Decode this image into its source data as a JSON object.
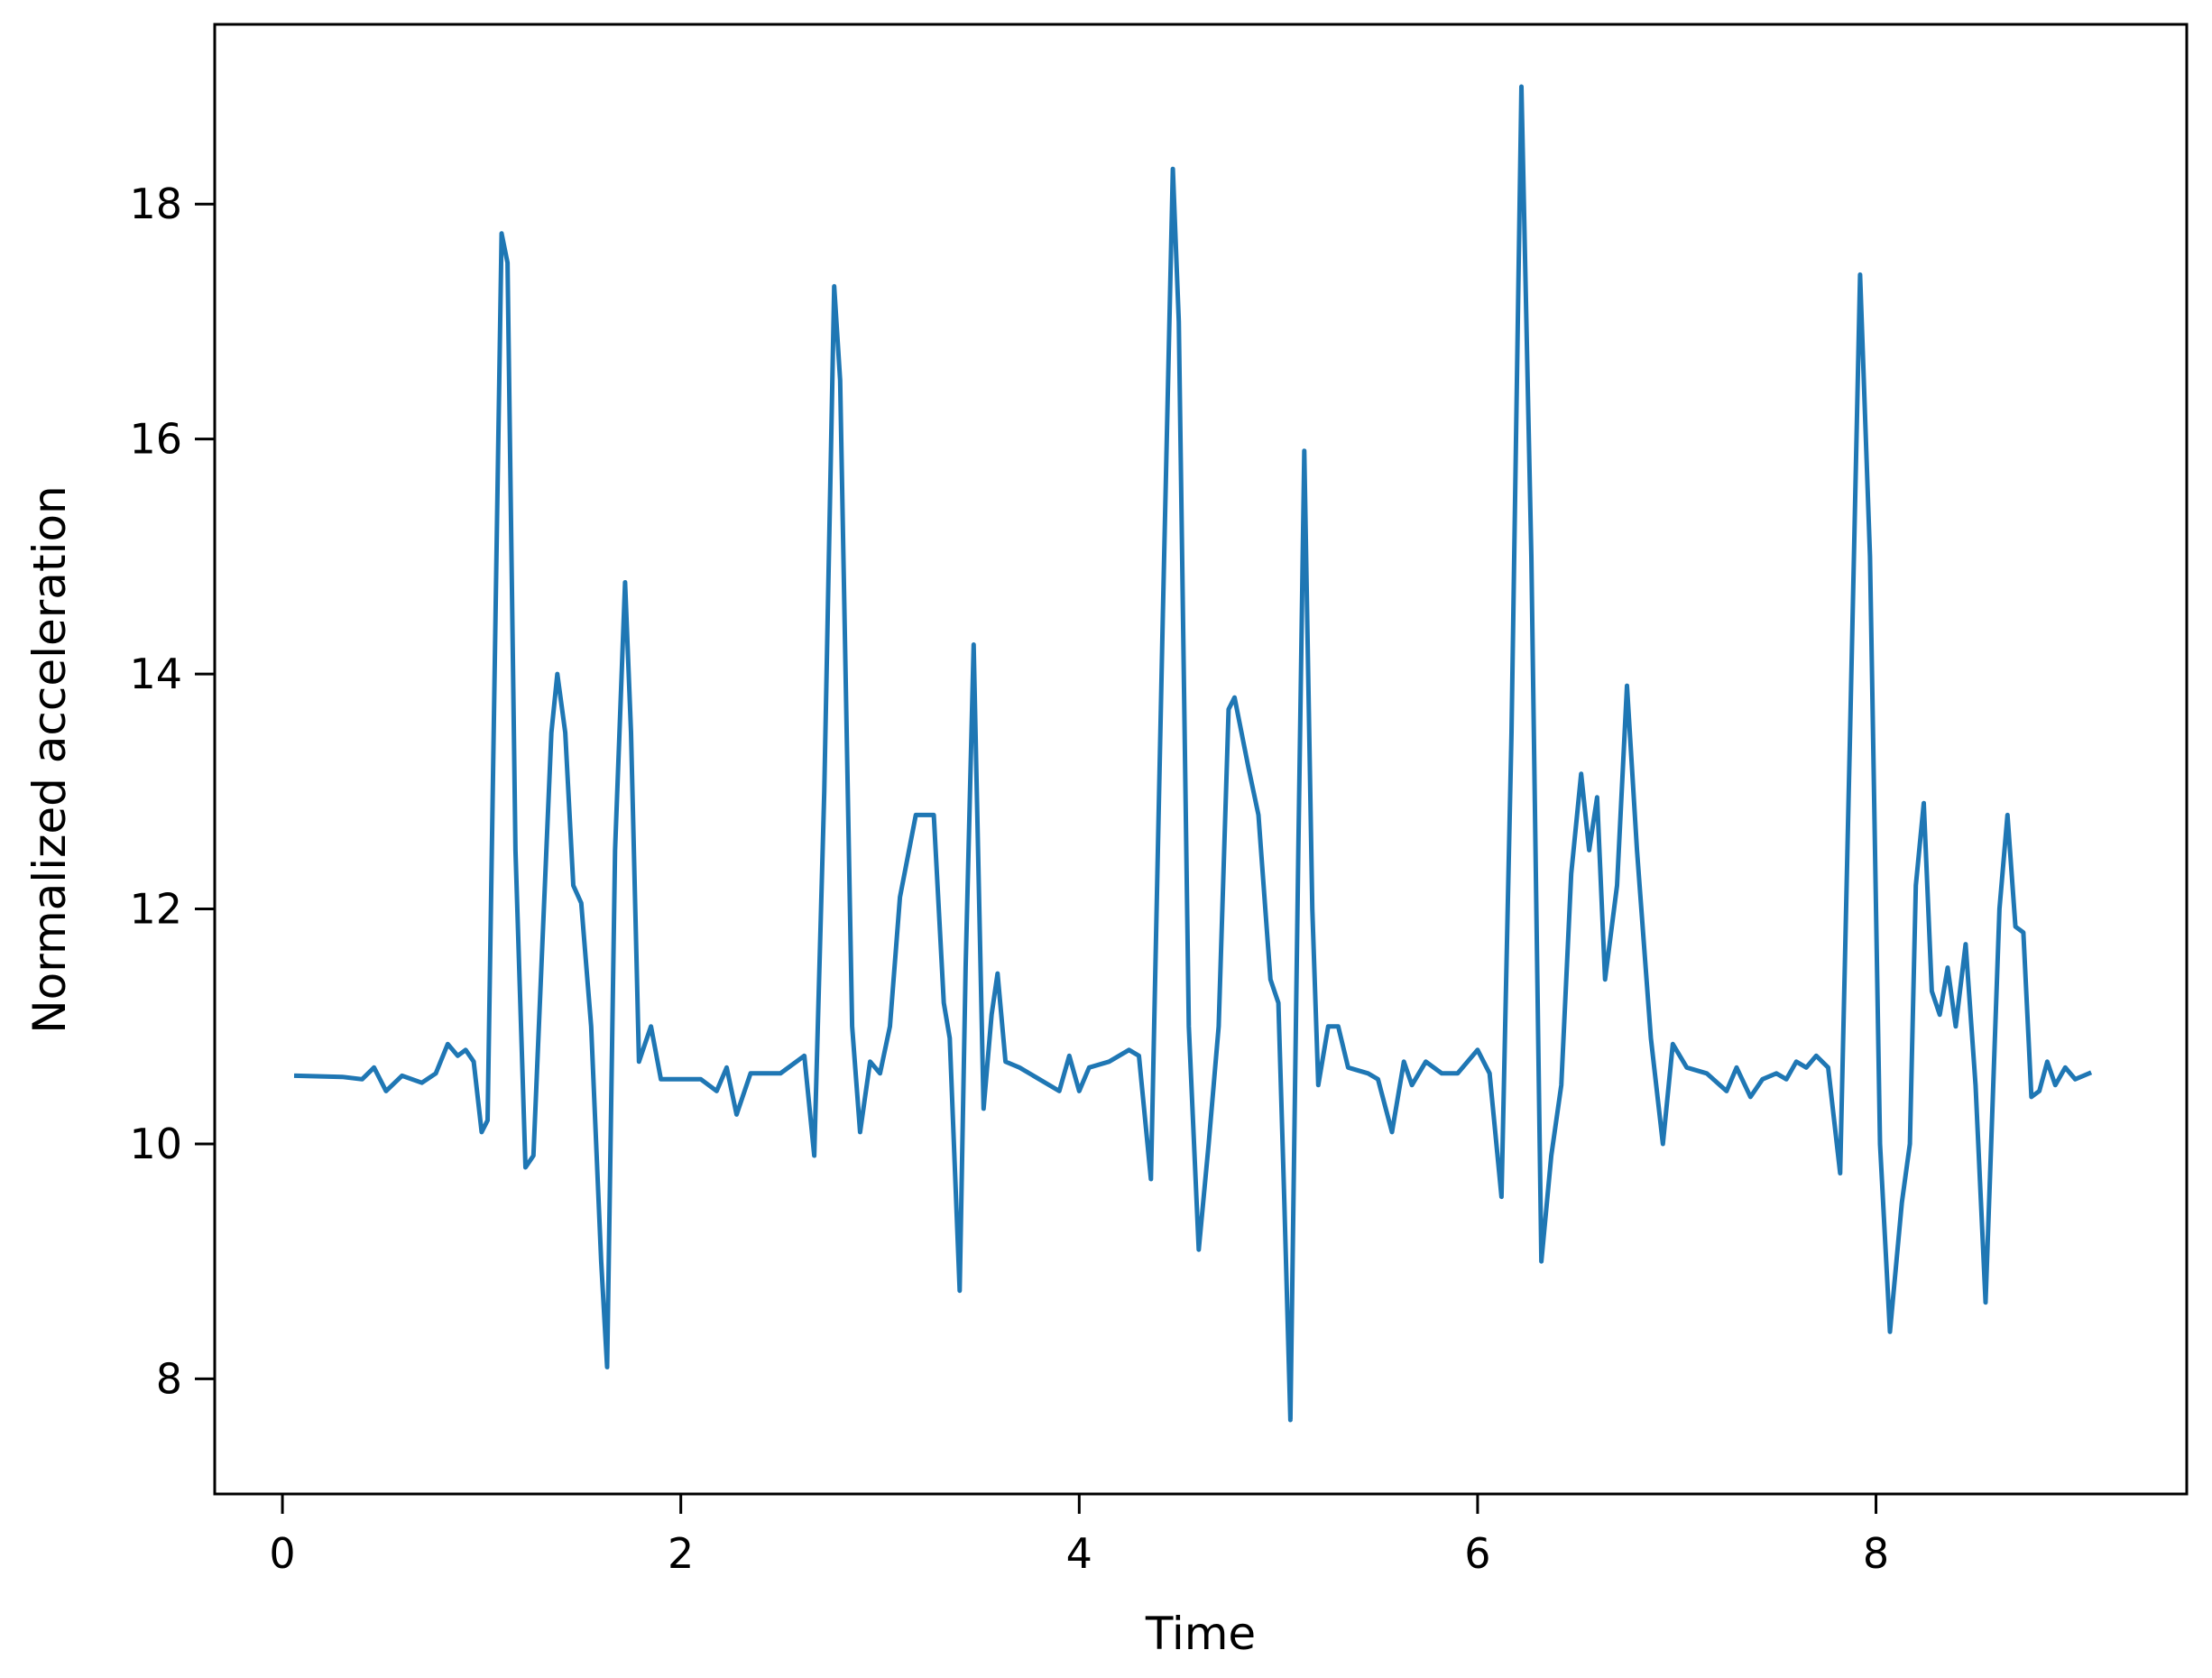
{
  "chart_data": {
    "type": "line",
    "title": "",
    "xlabel": "Time",
    "ylabel": "Normalized acceleration",
    "xlim": [
      -0.34,
      9.56
    ],
    "ylim": [
      7.02,
      19.53
    ],
    "xticks": [
      0,
      2,
      4,
      6,
      8
    ],
    "yticks": [
      8,
      10,
      12,
      14,
      16,
      18
    ],
    "grid": false,
    "legend": null,
    "series": [
      {
        "name": "acceleration",
        "color": "#1f77b4",
        "x": [
          0.07,
          0.3,
          0.4,
          0.46,
          0.52,
          0.6,
          0.7,
          0.77,
          0.83,
          0.88,
          0.92,
          0.96,
          1.0,
          1.03,
          1.07,
          1.1,
          1.13,
          1.17,
          1.22,
          1.26,
          1.3,
          1.35,
          1.38,
          1.42,
          1.46,
          1.5,
          1.55,
          1.6,
          1.63,
          1.67,
          1.72,
          1.75,
          1.79,
          1.82,
          1.85,
          1.9,
          2.0,
          2.1,
          2.18,
          2.23,
          2.28,
          2.35,
          2.5,
          2.62,
          2.67,
          2.72,
          2.77,
          2.8,
          2.86,
          2.9,
          2.95,
          3.0,
          3.05,
          3.1,
          3.18,
          3.27,
          3.32,
          3.35,
          3.4,
          3.43,
          3.47,
          3.52,
          3.56,
          3.59,
          3.63,
          3.7,
          3.8,
          3.9,
          3.95,
          4.0,
          4.05,
          4.15,
          4.25,
          4.3,
          4.36,
          4.42,
          4.47,
          4.5,
          4.55,
          4.6,
          4.65,
          4.7,
          4.75,
          4.78,
          4.85,
          4.9,
          4.96,
          5.0,
          5.03,
          5.06,
          5.1,
          5.13,
          5.17,
          5.2,
          5.25,
          5.3,
          5.35,
          5.45,
          5.5,
          5.57,
          5.63,
          5.67,
          5.74,
          5.82,
          5.9,
          6.0,
          6.06,
          6.12,
          6.17,
          6.22,
          6.27,
          6.32,
          6.37,
          6.42,
          6.47,
          6.52,
          6.56,
          6.6,
          6.64,
          6.7,
          6.75,
          6.8,
          6.87,
          6.93,
          6.98,
          7.05,
          7.15,
          7.25,
          7.3,
          7.37,
          7.43,
          7.5,
          7.55,
          7.6,
          7.65,
          7.7,
          7.76,
          7.82,
          7.87,
          7.92,
          7.97,
          8.02,
          8.07,
          8.13,
          8.17,
          8.2,
          8.24,
          8.28,
          8.32,
          8.36,
          8.4,
          8.45,
          8.5,
          8.55,
          8.62,
          8.66,
          8.7,
          8.74,
          8.78,
          8.82,
          8.86,
          8.9,
          8.95,
          9.0,
          9.07
        ],
        "y": [
          10.58,
          10.57,
          10.55,
          10.65,
          10.45,
          10.58,
          10.52,
          10.6,
          10.85,
          10.75,
          10.8,
          10.7,
          10.1,
          10.2,
          14.5,
          17.75,
          17.5,
          12.5,
          9.8,
          9.9,
          11.5,
          13.5,
          14.0,
          13.5,
          12.2,
          12.05,
          11.0,
          9.0,
          8.1,
          12.5,
          14.78,
          13.5,
          10.7,
          10.85,
          11.0,
          10.55,
          10.55,
          10.55,
          10.45,
          10.65,
          10.25,
          10.6,
          10.6,
          10.75,
          9.9,
          13.0,
          17.3,
          16.5,
          11.0,
          10.1,
          10.7,
          10.6,
          11.0,
          12.1,
          12.8,
          12.8,
          11.2,
          10.9,
          8.75,
          11.5,
          14.25,
          10.3,
          11.1,
          11.45,
          10.7,
          10.65,
          10.55,
          10.45,
          10.75,
          10.45,
          10.65,
          10.7,
          10.8,
          10.75,
          9.7,
          14.5,
          18.3,
          17.0,
          11.0,
          9.1,
          10.0,
          11.0,
          13.7,
          13.8,
          13.2,
          12.8,
          11.4,
          11.2,
          9.5,
          7.65,
          12.5,
          15.9,
          12.0,
          10.5,
          11.0,
          11.0,
          10.65,
          10.6,
          10.55,
          10.1,
          10.7,
          10.5,
          10.7,
          10.6,
          10.6,
          10.8,
          10.6,
          9.55,
          13.5,
          19.0,
          15.0,
          9.0,
          9.9,
          10.5,
          12.3,
          13.15,
          12.5,
          12.95,
          11.4,
          12.2,
          13.9,
          12.5,
          10.9,
          10.0,
          10.85,
          10.65,
          10.6,
          10.45,
          10.65,
          10.4,
          10.55,
          10.6,
          10.55,
          10.7,
          10.65,
          10.75,
          10.65,
          9.75,
          13.5,
          17.4,
          15.0,
          10.0,
          8.4,
          9.5,
          10.0,
          12.2,
          12.9,
          11.3,
          11.1,
          11.5,
          11.0,
          11.7,
          10.5,
          8.65,
          12.0,
          12.8,
          11.85,
          11.8,
          10.4,
          10.45,
          10.7,
          10.5,
          10.65,
          10.55,
          10.6
        ]
      }
    ]
  },
  "labels": {
    "xlabel": "Time",
    "ylabel": "Normalized acceleration",
    "xticks": [
      "0",
      "2",
      "4",
      "6",
      "8"
    ],
    "yticks": [
      "8",
      "10",
      "12",
      "14",
      "16",
      "18"
    ]
  }
}
